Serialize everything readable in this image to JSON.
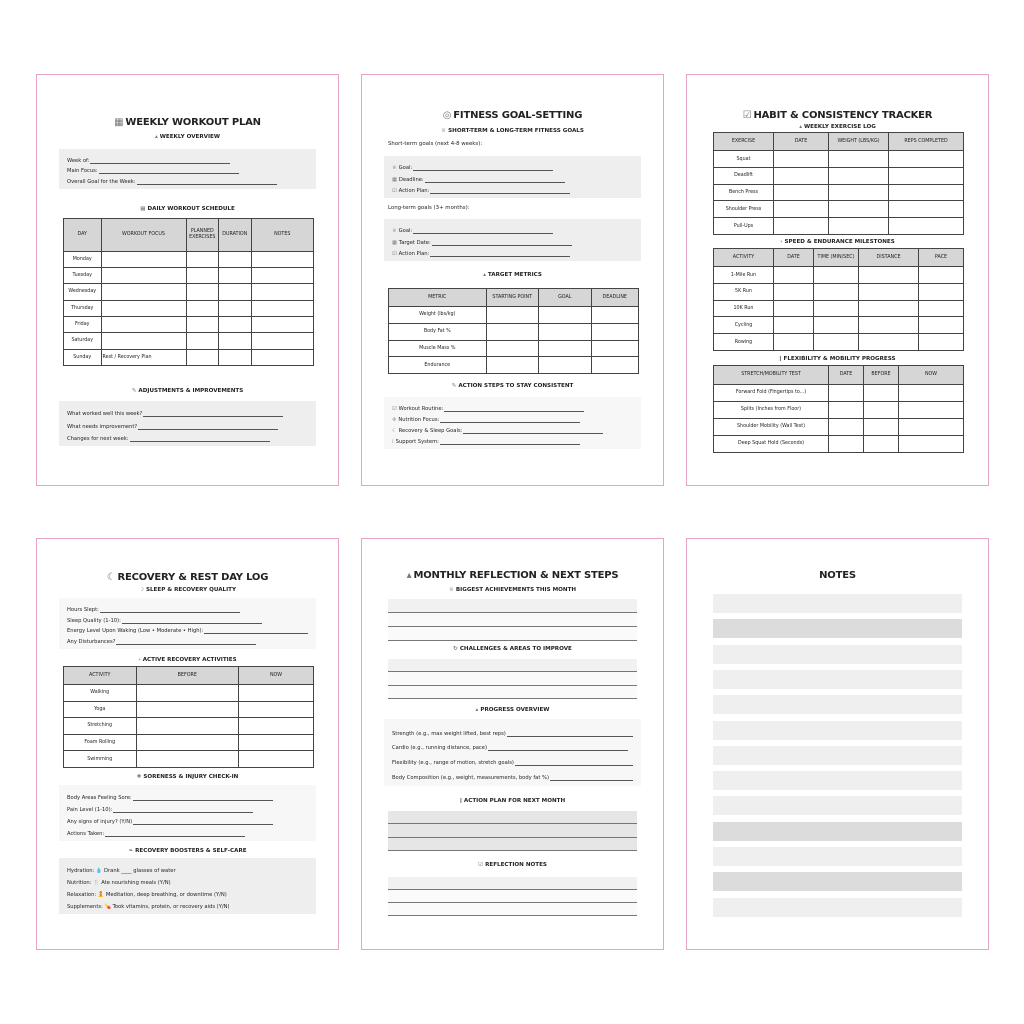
{
  "colors": {
    "page_border": "#e7a3c9",
    "header_fill": "#d6d6d6",
    "box_fill": "#eeeeee"
  },
  "pages": [
    {
      "blocks": [
        {
          "type": "title",
          "icon": "calendar-icon",
          "text": "WEEKLY WORKOUT PLAN"
        },
        {
          "type": "sub",
          "icon": "chart-icon",
          "text": "WEEKLY OVERVIEW"
        },
        {
          "type": "box",
          "fields": [
            {
              "label": "Week of:"
            },
            {
              "label": "Main Focus:"
            },
            {
              "label": "Overall Goal for the Week:"
            }
          ]
        },
        {
          "type": "sub",
          "icon": "calendar-icon",
          "text": "DAILY WORKOUT SCHEDULE"
        },
        {
          "type": "table",
          "headers": [
            "DAY",
            "WORKOUT FOCUS",
            "PLANNED EXERCISES",
            "DURATION",
            "NOTES"
          ],
          "rows": [
            [
              "Monday",
              "",
              "",
              "",
              ""
            ],
            [
              "Tuesday",
              "",
              "",
              "",
              ""
            ],
            [
              "Wednesday",
              "",
              "",
              "",
              ""
            ],
            [
              "Thursday",
              "",
              "",
              "",
              ""
            ],
            [
              "Friday",
              "",
              "",
              "",
              ""
            ],
            [
              "Saturday",
              "",
              "",
              "",
              ""
            ],
            [
              "Sunday",
              "Rest / Recovery Plan",
              "",
              "",
              ""
            ]
          ]
        },
        {
          "type": "sub",
          "icon": "wrench-icon",
          "text": "ADJUSTMENTS & IMPROVEMENTS"
        },
        {
          "type": "box",
          "fields": [
            {
              "label": "What worked well this week?"
            },
            {
              "label": "What needs improvement?"
            },
            {
              "label": "Changes for next week:"
            }
          ]
        }
      ]
    },
    {
      "blocks": [
        {
          "type": "title",
          "icon": "target-icon",
          "text": "FITNESS GOAL-SETTING"
        },
        {
          "type": "sub",
          "icon": "trophy-icon",
          "text": "SHORT-TERM & LONG-TERM FITNESS GOALS"
        },
        {
          "type": "plain",
          "text": "Short-term goals (next 4-8 weeks):"
        },
        {
          "type": "box",
          "fields": [
            {
              "icon": "trophy-icon",
              "label": "Goal:"
            },
            {
              "icon": "calendar-icon",
              "label": "Deadline:"
            },
            {
              "icon": "check-icon",
              "label": "Action Plan:"
            }
          ]
        },
        {
          "type": "plain",
          "text": "Long-term goals (3+ months):"
        },
        {
          "type": "box",
          "fields": [
            {
              "icon": "trophy-icon",
              "label": "Goal:"
            },
            {
              "icon": "calendar-icon",
              "label": "Target Date:"
            },
            {
              "icon": "check-icon",
              "label": "Action Plan:"
            }
          ]
        },
        {
          "type": "sub",
          "icon": "chart-icon",
          "text": "TARGET METRICS"
        },
        {
          "type": "table",
          "headers": [
            "METRIC",
            "STARTING POINT",
            "GOAL",
            "DEADLINE"
          ],
          "rows": [
            [
              "Weight (lbs/kg)",
              "",
              "",
              ""
            ],
            [
              "Body Fat %",
              "",
              "",
              ""
            ],
            [
              "Muscle Mass %",
              "",
              "",
              ""
            ],
            [
              "Endurance",
              "",
              "",
              ""
            ]
          ]
        },
        {
          "type": "sub",
          "icon": "wrench-icon",
          "text": "ACTION STEPS TO STAY CONSISTENT"
        },
        {
          "type": "box",
          "white": true,
          "fields": [
            {
              "icon": "check-icon",
              "label": "Workout Routine:"
            },
            {
              "icon": "food-icon",
              "label": "Nutrition Focus:"
            },
            {
              "icon": "sleep-icon",
              "label": "Recovery & Sleep Goals:"
            },
            {
              "icon": "people-icon",
              "label": "Support System:"
            }
          ]
        }
      ]
    },
    {
      "blocks": [
        {
          "type": "title",
          "icon": "check-icon",
          "text": "HABIT & CONSISTENCY TRACKER"
        },
        {
          "type": "sub",
          "icon": "chart-icon",
          "text": "WEEKLY EXERCISE LOG"
        },
        {
          "type": "table",
          "headers": [
            "EXERCISE",
            "DATE",
            "WEIGHT (LBS/KG)",
            "REPS COMPLETED"
          ],
          "rows": [
            [
              "Squat",
              "",
              "",
              ""
            ],
            [
              "Deadlift",
              "",
              "",
              ""
            ],
            [
              "Bench Press",
              "",
              "",
              ""
            ],
            [
              "Shoulder Press",
              "",
              "",
              ""
            ],
            [
              "Pull-Ups",
              "",
              "",
              ""
            ]
          ]
        },
        {
          "type": "sub",
          "icon": "runner-icon",
          "text": "SPEED & ENDURANCE MILESTONES"
        },
        {
          "type": "table",
          "headers": [
            "ACTIVITY",
            "DATE",
            "TIME (MIN/SEC)",
            "DISTANCE",
            "PACE"
          ],
          "rows": [
            [
              "1-Mile Run",
              "",
              "",
              "",
              ""
            ],
            [
              "5K Run",
              "",
              "",
              "",
              ""
            ],
            [
              "10K Run",
              "",
              "",
              "",
              ""
            ],
            [
              "Cycling",
              "",
              "",
              "",
              ""
            ],
            [
              "Rowing",
              "",
              "",
              "",
              ""
            ]
          ]
        },
        {
          "type": "sub",
          "icon": "stretch-icon",
          "text": "FLEXIBILITY & MOBILITY PROGRESS"
        },
        {
          "type": "table",
          "headers": [
            "STRETCH/MOBILITY TEST",
            "DATE",
            "BEFORE",
            "NOW"
          ],
          "rows": [
            [
              "Forward Fold (Fingertips to...)",
              "",
              "",
              ""
            ],
            [
              "Splits (Inches from Floor)",
              "",
              "",
              ""
            ],
            [
              "Shoulder Mobility (Wall Test)",
              "",
              "",
              ""
            ],
            [
              "Deep Squat Hold (Seconds)",
              "",
              "",
              ""
            ]
          ]
        }
      ]
    },
    {
      "blocks": [
        {
          "type": "title",
          "icon": "sleep-icon",
          "text": "RECOVERY & REST DAY LOG"
        },
        {
          "type": "sub",
          "icon": "moon-icon",
          "text": "SLEEP & RECOVERY QUALITY"
        },
        {
          "type": "box",
          "white": true,
          "fields": [
            {
              "label": "Hours Slept:"
            },
            {
              "label": "Sleep Quality (1-10):"
            },
            {
              "label": "Energy Level Upon Waking (Low • Moderate • High):"
            },
            {
              "label": "Any Disturbances?"
            }
          ]
        },
        {
          "type": "sub",
          "icon": "runner-icon",
          "text": "ACTIVE RECOVERY ACTIVITIES"
        },
        {
          "type": "table",
          "headers": [
            "ACTIVITY",
            "BEFORE",
            "NOW"
          ],
          "rows": [
            [
              "Walking",
              "",
              ""
            ],
            [
              "Yoga",
              "",
              ""
            ],
            [
              "Stretching",
              "",
              ""
            ],
            [
              "Foam Rolling",
              "",
              ""
            ],
            [
              "Swimming",
              "",
              ""
            ]
          ]
        },
        {
          "type": "sub",
          "icon": "bandage-icon",
          "text": "SORENESS & INJURY CHECK-IN"
        },
        {
          "type": "box",
          "white": true,
          "fields": [
            {
              "label": "Body Areas Feeling Sore:"
            },
            {
              "label": "Pain Level (1-10):"
            },
            {
              "label": "Any signs of injury? (Y/N)"
            },
            {
              "label": "Actions Taken:"
            }
          ]
        },
        {
          "type": "sub",
          "icon": "leaf-icon",
          "text": "RECOVERY BOOSTERS & SELF-CARE"
        },
        {
          "type": "box",
          "fields": [
            {
              "label": "Hydration: 💧 Drank ____ glasses of water",
              "noline": true
            },
            {
              "label": "Nutrition: 🍴 Ate nourishing meals (Y/N)",
              "noline": true
            },
            {
              "label": "Relaxation: 🧘 Meditation, deep breathing, or downtime (Y/N)",
              "noline": true
            },
            {
              "label": "Supplements: 💊 Took vitamins, protein, or recovery aids (Y/N)",
              "noline": true
            }
          ]
        }
      ]
    },
    {
      "blocks": [
        {
          "type": "title",
          "icon": "chart-icon",
          "text": "MONTHLY REFLECTION & NEXT STEPS"
        },
        {
          "type": "sub",
          "icon": "trophy-icon",
          "text": "BIGGEST ACHIEVEMENTS THIS MONTH"
        },
        {
          "type": "lines",
          "count": 3
        },
        {
          "type": "sub",
          "icon": "refresh-icon",
          "text": "CHALLENGES & AREAS TO IMPROVE"
        },
        {
          "type": "lines",
          "count": 3
        },
        {
          "type": "sub",
          "icon": "chart-icon",
          "text": "PROGRESS OVERVIEW"
        },
        {
          "type": "box",
          "white": true,
          "fields": [
            {
              "label": "Strength (e.g., max weight lifted, best reps)"
            },
            {
              "label": "Cardio (e.g., running distance, pace)"
            },
            {
              "label": "Flexibility (e.g., range of motion, stretch goals)"
            },
            {
              "label": "Body Composition (e.g., weight, measurements, body fat %)"
            }
          ]
        },
        {
          "type": "sub",
          "icon": "pin-icon",
          "text": "ACTION PLAN FOR NEXT MONTH"
        },
        {
          "type": "lines",
          "count": 3,
          "shaded": true
        },
        {
          "type": "sub",
          "icon": "check-icon",
          "text": "REFLECTION NOTES"
        },
        {
          "type": "lines",
          "count": 3
        }
      ]
    },
    {
      "blocks": [
        {
          "type": "title",
          "text": "NOTES"
        },
        {
          "type": "notes",
          "shades": [
            "light",
            "dark",
            "light",
            "light",
            "light",
            "light",
            "light",
            "light",
            "light",
            "dark",
            "light",
            "dark",
            "light"
          ]
        }
      ]
    }
  ]
}
